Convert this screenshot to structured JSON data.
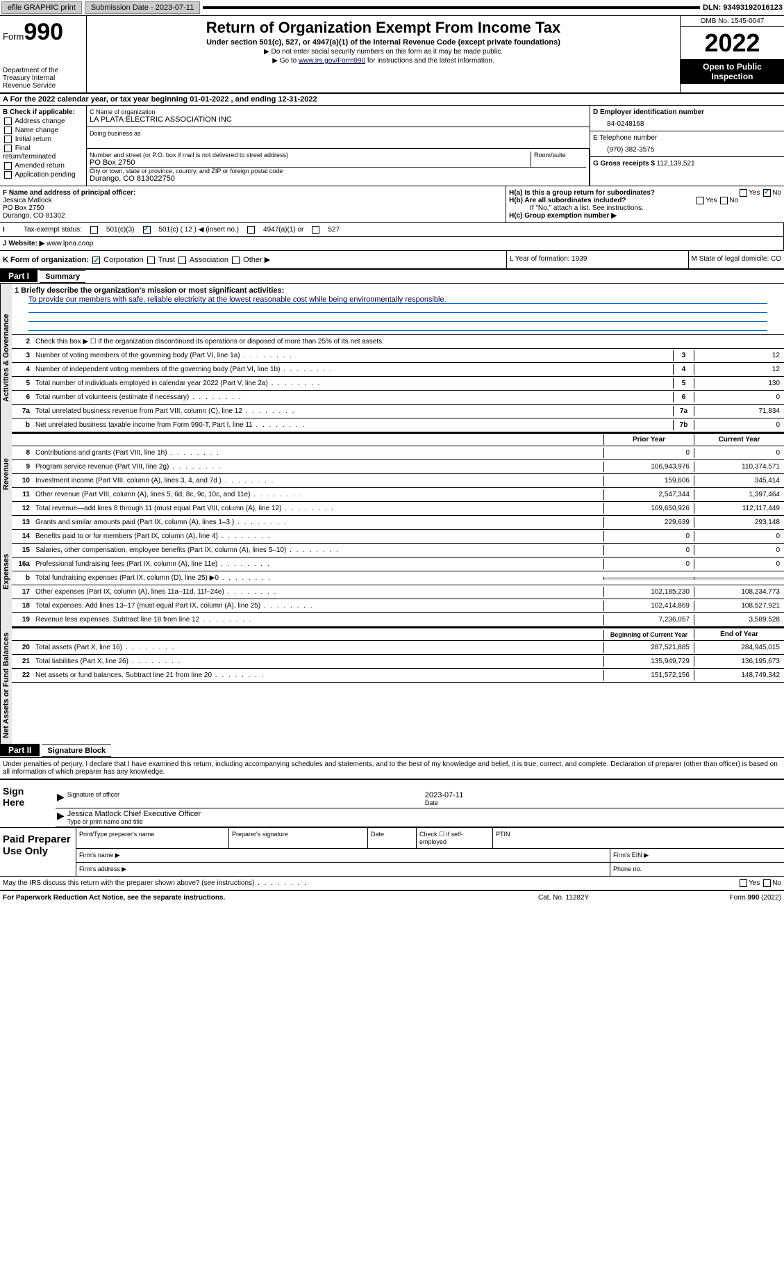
{
  "topbar": {
    "efile": "efile GRAPHIC print",
    "submission": "Submission Date - 2023-07-11",
    "dln": "DLN: 93493192016123"
  },
  "header": {
    "form": "Form",
    "form_num": "990",
    "dept": "Department of the Treasury Internal Revenue Service",
    "title": "Return of Organization Exempt From Income Tax",
    "sub": "Under section 501(c), 527, or 4947(a)(1) of the Internal Revenue Code (except private foundations)",
    "note1": "▶ Do not enter social security numbers on this form as it may be made public.",
    "note2_pre": "▶ Go to ",
    "note2_link": "www.irs.gov/Form990",
    "note2_post": " for instructions and the latest information.",
    "omb": "OMB No. 1545-0047",
    "year": "2022",
    "open": "Open to Public Inspection"
  },
  "row_a": "A For the 2022 calendar year, or tax year beginning 01-01-2022    , and ending 12-31-2022",
  "col_b": {
    "hdr": "B Check if applicable:",
    "items": [
      "Address change",
      "Name change",
      "Initial return",
      "Final return/terminated",
      "Amended return",
      "Application pending"
    ]
  },
  "box_c": {
    "lbl_name": "C Name of organization",
    "name": "LA PLATA ELECTRIC ASSOCIATION INC",
    "lbl_dba": "Doing business as",
    "lbl_addr": "Number and street (or P.O. box if mail is not delivered to street address)",
    "lbl_room": "Room/suite",
    "addr": "PO Box 2750",
    "lbl_city": "City or town, state or province, country, and ZIP or foreign postal code",
    "city": "Durango, CO  813022750"
  },
  "col_de": {
    "lbl_d": "D Employer identification number",
    "ein": "84-0248168",
    "lbl_e": "E Telephone number",
    "phone": "(970) 382-3575",
    "lbl_g": "G Gross receipts $",
    "gross": "112,139,521"
  },
  "row_f": {
    "lbl": "F Name and address of principal officer:",
    "name": "Jessica Matlock",
    "addr1": "PO Box 2750",
    "addr2": "Durango, CO  81302"
  },
  "row_h": {
    "ha": "H(a)  Is this a group return for subordinates?",
    "hb": "H(b)  Are all subordinates included?",
    "hb_note": "If \"No,\" attach a list. See instructions.",
    "hc": "H(c)  Group exemption number ▶"
  },
  "row_i": {
    "lbl": "Tax-exempt status:",
    "opts": [
      "501(c)(3)",
      "501(c) ( 12 ) ◀ (insert no.)",
      "4947(a)(1) or",
      "527"
    ]
  },
  "row_j": {
    "lbl": "Website: ▶",
    "val": "www.lpea.coop"
  },
  "row_k": {
    "lbl": "K Form of organization:",
    "opts": [
      "Corporation",
      "Trust",
      "Association",
      "Other ▶"
    ]
  },
  "row_lm": {
    "l": "L Year of formation: 1939",
    "m": "M State of legal domicile: CO"
  },
  "part1": {
    "hdr": "Part I",
    "title": "Summary"
  },
  "mission": {
    "lbl": "1   Briefly describe the organization's mission or most significant activities:",
    "txt": "To provide our members with safe, reliable electricity at the lowest reasonable cost while being environmentally responsible."
  },
  "line2": "Check this box ▶ ☐  if the organization discontinued its operations or disposed of more than 25% of its net assets.",
  "vtabs": {
    "gov": "Activities & Governance",
    "rev": "Revenue",
    "exp": "Expenses",
    "net": "Net Assets or Fund Balances"
  },
  "gov_lines": [
    {
      "n": "3",
      "t": "Number of voting members of the governing body (Part VI, line 1a)",
      "c": "3",
      "v": "12"
    },
    {
      "n": "4",
      "t": "Number of independent voting members of the governing body (Part VI, line 1b)",
      "c": "4",
      "v": "12"
    },
    {
      "n": "5",
      "t": "Total number of individuals employed in calendar year 2022 (Part V, line 2a)",
      "c": "5",
      "v": "130"
    },
    {
      "n": "6",
      "t": "Total number of volunteers (estimate if necessary)",
      "c": "6",
      "v": "0"
    },
    {
      "n": "7a",
      "t": "Total unrelated business revenue from Part VIII, column (C), line 12",
      "c": "7a",
      "v": "71,834"
    },
    {
      "n": "b",
      "t": "Net unrelated business taxable income from Form 990-T, Part I, line 11",
      "c": "7b",
      "v": "0"
    }
  ],
  "two_col_hdr": {
    "py": "Prior Year",
    "cy": "Current Year"
  },
  "rev_lines": [
    {
      "n": "8",
      "t": "Contributions and grants (Part VIII, line 1h)",
      "py": "0",
      "cy": "0"
    },
    {
      "n": "9",
      "t": "Program service revenue (Part VIII, line 2g)",
      "py": "106,943,976",
      "cy": "110,374,571"
    },
    {
      "n": "10",
      "t": "Investment income (Part VIII, column (A), lines 3, 4, and 7d )",
      "py": "159,606",
      "cy": "345,414"
    },
    {
      "n": "11",
      "t": "Other revenue (Part VIII, column (A), lines 5, 6d, 8c, 9c, 10c, and 11e)",
      "py": "2,547,344",
      "cy": "1,397,464"
    },
    {
      "n": "12",
      "t": "Total revenue—add lines 8 through 11 (must equal Part VIII, column (A), line 12)",
      "py": "109,650,926",
      "cy": "112,117,449"
    }
  ],
  "exp_lines": [
    {
      "n": "13",
      "t": "Grants and similar amounts paid (Part IX, column (A), lines 1–3 )",
      "py": "229,639",
      "cy": "293,148"
    },
    {
      "n": "14",
      "t": "Benefits paid to or for members (Part IX, column (A), line 4)",
      "py": "0",
      "cy": "0"
    },
    {
      "n": "15",
      "t": "Salaries, other compensation, employee benefits (Part IX, column (A), lines 5–10)",
      "py": "0",
      "cy": "0"
    },
    {
      "n": "16a",
      "t": "Professional fundraising fees (Part IX, column (A), line 11e)",
      "py": "0",
      "cy": "0"
    },
    {
      "n": "b",
      "t": "Total fundraising expenses (Part IX, column (D), line 25) ▶0",
      "py": "",
      "cy": "",
      "gray": true
    },
    {
      "n": "17",
      "t": "Other expenses (Part IX, column (A), lines 11a–11d, 11f–24e)",
      "py": "102,185,230",
      "cy": "108,234,773"
    },
    {
      "n": "18",
      "t": "Total expenses. Add lines 13–17 (must equal Part IX, column (A), line 25)",
      "py": "102,414,869",
      "cy": "108,527,921"
    },
    {
      "n": "19",
      "t": "Revenue less expenses. Subtract line 18 from line 12",
      "py": "7,236,057",
      "cy": "3,589,528"
    }
  ],
  "net_hdr": {
    "py": "Beginning of Current Year",
    "cy": "End of Year"
  },
  "net_lines": [
    {
      "n": "20",
      "t": "Total assets (Part X, line 16)",
      "py": "287,521,885",
      "cy": "284,945,015"
    },
    {
      "n": "21",
      "t": "Total liabilities (Part X, line 26)",
      "py": "135,949,729",
      "cy": "136,195,673"
    },
    {
      "n": "22",
      "t": "Net assets or fund balances. Subtract line 21 from line 20",
      "py": "151,572,156",
      "cy": "148,749,342"
    }
  ],
  "part2": {
    "hdr": "Part II",
    "title": "Signature Block"
  },
  "sig_decl": "Under penalties of perjury, I declare that I have examined this return, including accompanying schedules and statements, and to the best of my knowledge and belief, it is true, correct, and complete. Declaration of preparer (other than officer) is based on all information of which preparer has any knowledge.",
  "sign": {
    "here": "Sign Here",
    "sig_of": "Signature of officer",
    "date": "Date",
    "date_val": "2023-07-11",
    "name": "Jessica Matlock  Chief Executive Officer",
    "name_lbl": "Type or print name and title"
  },
  "paid": {
    "hdr": "Paid Preparer Use Only",
    "r1": [
      "Print/Type preparer's name",
      "Preparer's signature",
      "Date",
      "Check ☐ if self-employed",
      "PTIN"
    ],
    "r2a": "Firm's name   ▶",
    "r2b": "Firm's EIN ▶",
    "r3a": "Firm's address ▶",
    "r3b": "Phone no."
  },
  "may_discuss": "May the IRS discuss this return with the preparer shown above? (see instructions)",
  "footer": {
    "pra": "For Paperwork Reduction Act Notice, see the separate instructions.",
    "cat": "Cat. No. 11282Y",
    "form": "Form 990 (2022)"
  },
  "yes": "Yes",
  "no": "No"
}
